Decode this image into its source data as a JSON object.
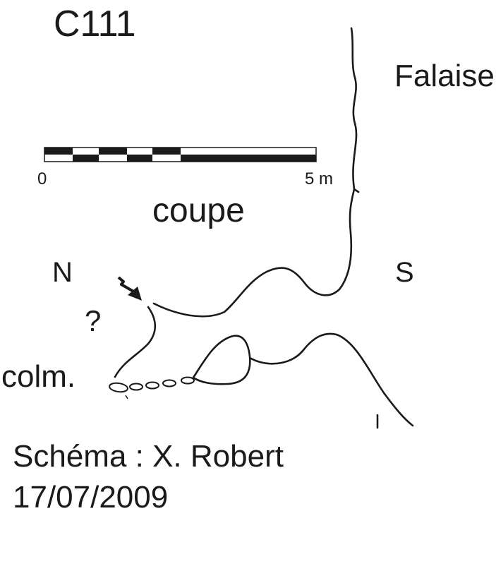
{
  "cave_id": "C111",
  "cliff_label": "Falaise",
  "scale_bar": {
    "start_label": "0",
    "end_label": "5 m"
  },
  "view_label": "coupe",
  "orientation": {
    "left": "N",
    "right": "S"
  },
  "uncertain_mark": "?",
  "fill_label": "colm.",
  "credit": {
    "author": "Schéma : X. Robert",
    "date": "17/07/2009"
  },
  "colors": {
    "ink": "#1a1a1a",
    "paper": "#ffffff"
  }
}
